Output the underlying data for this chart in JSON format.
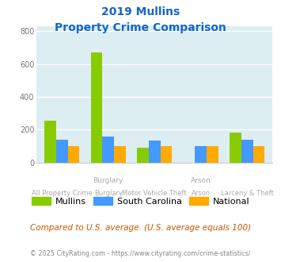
{
  "title_line1": "2019 Mullins",
  "title_line2": "Property Crime Comparison",
  "categories": [
    "All Property Crime",
    "Burglary",
    "Motor Vehicle Theft",
    "Arson",
    "Larceny & Theft"
  ],
  "top_labels": [
    "",
    "Burglary",
    "",
    "Arson",
    ""
  ],
  "mullins": [
    255,
    670,
    90,
    0,
    180
  ],
  "south_carolina": [
    140,
    158,
    135,
    100,
    140
  ],
  "national": [
    100,
    100,
    100,
    100,
    100
  ],
  "mullins_color": "#88cc00",
  "south_carolina_color": "#4499ff",
  "national_color": "#ffaa00",
  "ylim": [
    0,
    830
  ],
  "yticks": [
    0,
    200,
    400,
    600,
    800
  ],
  "plot_bg": "#ddeef2",
  "title_color": "#1166cc",
  "footer_text": "Compared to U.S. average. (U.S. average equals 100)",
  "credit_text": "© 2025 CityRating.com - https://www.cityrating.com/crime-statistics/",
  "legend_labels": [
    "Mullins",
    "South Carolina",
    "National"
  ],
  "bar_width": 0.25
}
